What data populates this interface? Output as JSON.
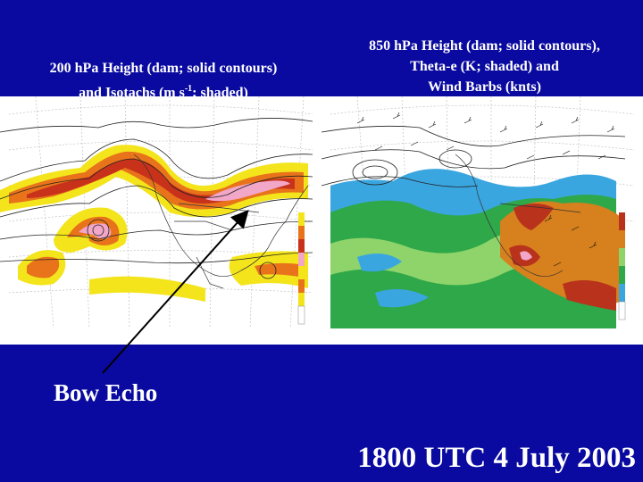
{
  "left_panel": {
    "title_line1": "200 hPa Height (dam; solid contours)",
    "title_line2_prefix": "and Isotachs (m s",
    "title_line2_sup": "-1",
    "title_line2_suffix": "; shaded)"
  },
  "right_panel": {
    "title_line1": "850 hPa Height (dam; solid contours),",
    "title_line2": "Theta-e (K; shaded) and",
    "title_line3": "Wind Barbs (knts)"
  },
  "annotation": {
    "label": "Bow Echo"
  },
  "timestamp": "1800 UTC 4 July 2003",
  "colors": {
    "background": "#0a0aa0",
    "text": "#ffffff",
    "jet_yellow": "#f3e41c",
    "jet_orange": "#e8731a",
    "jet_red": "#c8321a",
    "jet_pink": "#f2a6c8",
    "theta_blue": "#3aa6e0",
    "theta_green": "#2fa84a",
    "theta_light_green": "#8fd46a",
    "theta_orange": "#d6801e",
    "theta_red": "#b8321c"
  }
}
